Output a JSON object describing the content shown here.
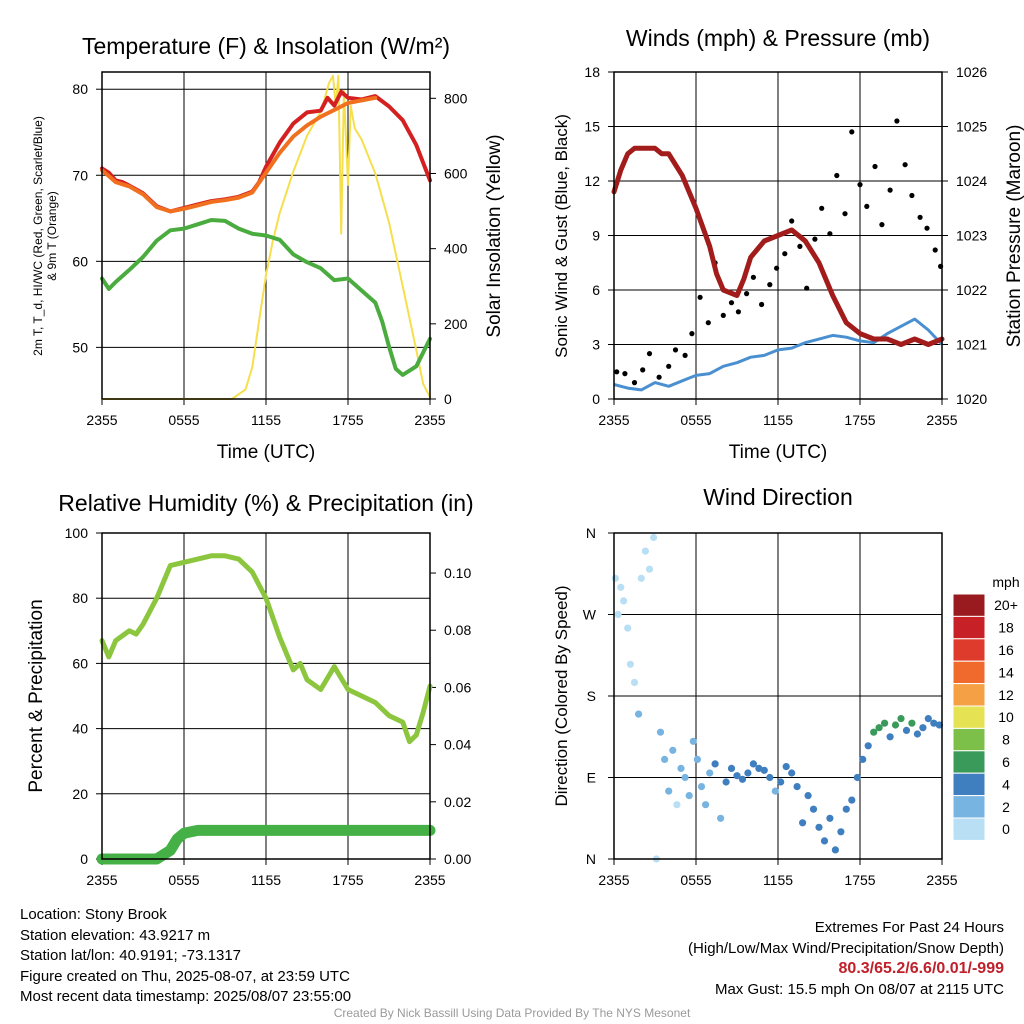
{
  "colors": {
    "t2m": "#d42020",
    "t9m": "#f07020",
    "dewpoint": "#4aab3f",
    "solar": "#f5df4d",
    "gust": "#000000",
    "wind": "#4a90d0",
    "pressure": "#a21c1c",
    "rh": "#8cc63e",
    "precip": "#44b045",
    "grid": "#000000"
  },
  "footer": {
    "location": "Location: Stony Brook",
    "elevation": "Station elevation: 43.9217 m",
    "latlon": "Station lat/lon: 40.9191; -73.1317",
    "created": "Figure created on Thu, 2025-08-07, at 23:59 UTC",
    "recent": "Most recent data timestamp: 2025/08/07 23:55:00",
    "extremes_title": "Extremes For Past 24 Hours",
    "extremes_legend": "(High/Low/Max Wind/Precipitation/Snow Depth)",
    "extremes_values": "80.3/65.2/6.6/0.01/-999",
    "max_gust": "Max Gust: 15.5 mph On 08/07 at 2115 UTC",
    "credit": "Created By Nick Bassill Using Data Provided By The NYS Mesonet"
  },
  "chart_data": [
    {
      "type": "line",
      "title": "Temperature (F) & Insolation (W/m²)",
      "xlabel": "Time (UTC)",
      "ylabel": "2m T, T_d, HI/WC (Red, Green, Scarlet/Blue) & 9m T (Orange)",
      "ylabel_right": "Solar Insolation (Yellow)",
      "x_ticks": [
        "2355",
        "0555",
        "1155",
        "1755",
        "2355"
      ],
      "x_hours": [
        0,
        24
      ],
      "ylim": [
        44,
        82
      ],
      "y_ticks": [
        50,
        60,
        70,
        80
      ],
      "ylim_right": [
        0,
        870
      ],
      "y_ticks_right": [
        0,
        200,
        400,
        600,
        800
      ],
      "grid": true,
      "series": [
        {
          "name": "2m T",
          "axis": "left",
          "color": "#d42020",
          "x": [
            0,
            0.5,
            1,
            1.5,
            2,
            3,
            4,
            5,
            6,
            7,
            8,
            9,
            10,
            11,
            11.5,
            12,
            13,
            14,
            15,
            16,
            16.5,
            17,
            17.5,
            18,
            19,
            20,
            21,
            22,
            23,
            24
          ],
          "y": [
            70.8,
            70.3,
            69.4,
            69.2,
            68.8,
            67.9,
            66.4,
            65.8,
            66.2,
            66.6,
            67.0,
            67.2,
            67.5,
            68.1,
            69.2,
            71.0,
            73.8,
            76.0,
            77.3,
            77.5,
            79.0,
            78.1,
            79.7,
            79.0,
            78.8,
            79.2,
            78.0,
            76.4,
            73.5,
            69.4
          ]
        },
        {
          "name": "9m T",
          "axis": "left",
          "color": "#f07020",
          "x": [
            0,
            1,
            2,
            3,
            4,
            5,
            6,
            7,
            8,
            9,
            10,
            11,
            12,
            13,
            14,
            15,
            16,
            17,
            18,
            19,
            20
          ],
          "y": [
            70.6,
            69.2,
            68.7,
            67.8,
            66.3,
            65.8,
            66.1,
            66.5,
            66.9,
            67.1,
            67.4,
            68.0,
            70.3,
            72.6,
            74.5,
            75.8,
            76.8,
            77.6,
            78.4,
            78.7,
            79.0
          ]
        },
        {
          "name": "Td",
          "axis": "left",
          "color": "#4aab3f",
          "x": [
            0,
            0.5,
            1,
            2,
            3,
            4,
            5,
            6,
            7,
            8,
            9,
            10,
            11,
            12,
            13,
            14,
            15,
            16,
            17,
            18,
            19,
            20,
            20.5,
            21,
            21.5,
            22,
            23,
            24
          ],
          "y": [
            58.0,
            56.8,
            57.6,
            59.0,
            60.5,
            62.4,
            63.6,
            63.8,
            64.3,
            64.8,
            64.7,
            63.8,
            63.2,
            63.0,
            62.5,
            60.8,
            59.9,
            59.2,
            57.8,
            58.0,
            56.6,
            55.2,
            53.0,
            50.1,
            47.5,
            46.8,
            47.8,
            51.0
          ]
        },
        {
          "name": "Solar",
          "axis": "right",
          "color": "#f5df4d",
          "x": [
            0,
            9.5,
            10.5,
            11,
            11.5,
            12,
            12.5,
            13,
            14,
            15,
            16,
            16.3,
            16.6,
            16.9,
            17.1,
            17.3,
            17.5,
            17.7,
            18.0,
            18.2,
            18.5,
            19,
            20,
            21,
            22,
            23,
            23.5,
            24
          ],
          "y": [
            0,
            0,
            25,
            85,
            210,
            330,
            420,
            495,
            605,
            700,
            765,
            800,
            840,
            860,
            780,
            860,
            440,
            820,
            570,
            780,
            720,
            690,
            600,
            470,
            300,
            130,
            40,
            5
          ]
        }
      ]
    },
    {
      "type": "scatter",
      "title": "Winds (mph) & Pressure (mb)",
      "xlabel": "Time (UTC)",
      "ylabel": "Sonic Wind & Gust (Blue, Black)",
      "ylabel_right": "Station Pressure (Maroon)",
      "x_ticks": [
        "2355",
        "0555",
        "1155",
        "1755",
        "2355"
      ],
      "x_hours": [
        0,
        24
      ],
      "ylim": [
        0,
        18
      ],
      "y_ticks": [
        0,
        3,
        6,
        9,
        12,
        15,
        18
      ],
      "ylim_right": [
        1020,
        1026
      ],
      "y_ticks_right": [
        1020,
        1021,
        1022,
        1023,
        1024,
        1025,
        1026
      ],
      "grid": true,
      "series": [
        {
          "name": "Sonic Wind",
          "axis": "left",
          "color": "#4a90d0",
          "x": [
            0,
            1,
            2,
            3,
            4,
            5,
            6,
            7,
            8,
            9,
            10,
            11,
            12,
            13,
            14,
            15,
            16,
            17,
            18,
            19,
            20,
            21,
            22,
            23,
            24
          ],
          "y": [
            0.8,
            0.6,
            0.5,
            0.9,
            0.7,
            1.0,
            1.3,
            1.4,
            1.8,
            2.0,
            2.3,
            2.4,
            2.7,
            2.8,
            3.1,
            3.3,
            3.5,
            3.4,
            3.2,
            3.1,
            3.6,
            4.0,
            4.4,
            3.8,
            3.0
          ]
        },
        {
          "name": "Gust",
          "axis": "left",
          "color": "#000000",
          "x": [
            0.2,
            0.8,
            1.5,
            2.1,
            2.6,
            3.3,
            4.0,
            4.5,
            5.2,
            5.7,
            6.3,
            6.9,
            7.4,
            8.0,
            8.6,
            9.1,
            9.7,
            10.2,
            10.8,
            11.4,
            11.9,
            12.5,
            13.0,
            13.6,
            14.1,
            14.7,
            15.2,
            15.8,
            16.3,
            16.9,
            17.4,
            18.0,
            18.5,
            19.1,
            19.6,
            20.2,
            20.7,
            21.3,
            21.8,
            22.4,
            22.9,
            23.5,
            23.9
          ],
          "y": [
            1.5,
            1.4,
            0.9,
            1.6,
            2.5,
            1.2,
            1.8,
            2.7,
            2.4,
            3.6,
            5.6,
            4.2,
            7.5,
            4.6,
            5.3,
            4.8,
            5.8,
            6.7,
            5.2,
            6.3,
            7.2,
            8.0,
            9.8,
            8.4,
            6.1,
            8.8,
            10.5,
            9.1,
            12.3,
            10.2,
            14.7,
            11.8,
            10.6,
            12.8,
            9.6,
            11.5,
            15.3,
            12.9,
            11.2,
            10.0,
            9.4,
            8.2,
            7.3
          ]
        },
        {
          "name": "Pressure",
          "axis": "right",
          "color": "#a21c1c",
          "x": [
            0,
            0.5,
            1,
            1.5,
            2,
            3,
            3.5,
            4,
            5,
            6,
            7,
            7.5,
            8,
            9,
            9.5,
            10,
            11,
            12,
            13,
            14,
            15,
            16,
            17,
            18,
            19,
            20,
            21,
            22,
            23,
            24
          ],
          "y": [
            1023.8,
            1024.2,
            1024.5,
            1024.6,
            1024.6,
            1024.6,
            1024.5,
            1024.5,
            1024.1,
            1023.5,
            1022.8,
            1022.3,
            1022.0,
            1021.9,
            1022.2,
            1022.6,
            1022.9,
            1023.0,
            1023.1,
            1022.9,
            1022.5,
            1021.9,
            1021.4,
            1021.2,
            1021.1,
            1021.1,
            1021.0,
            1021.1,
            1021.0,
            1021.1
          ]
        }
      ]
    },
    {
      "type": "line",
      "title": "Relative Humidity (%) & Precipitation (in)",
      "xlabel": "",
      "ylabel": "Percent & Precipitation",
      "x_ticks": [
        "2355",
        "0555",
        "1155",
        "1755",
        "2355"
      ],
      "x_hours": [
        0,
        24
      ],
      "ylim": [
        0,
        100
      ],
      "y_ticks": [
        0,
        20,
        40,
        60,
        80,
        100
      ],
      "ylim_right": [
        0,
        0.114
      ],
      "y_ticks_right": [
        "0.00",
        "0.02",
        "0.04",
        "0.06",
        "0.08",
        "0.10"
      ],
      "grid": true,
      "series": [
        {
          "name": "RH",
          "axis": "left",
          "color": "#8cc63e",
          "x": [
            0,
            0.5,
            1,
            2,
            2.5,
            3,
            4,
            5,
            6,
            7,
            8,
            9,
            10,
            11,
            12,
            13,
            14,
            14.5,
            15,
            16,
            17,
            18,
            19,
            20,
            21,
            22,
            22.5,
            23,
            23.5,
            24
          ],
          "y": [
            67,
            62,
            67,
            70,
            69,
            72,
            80,
            90,
            91,
            92,
            93,
            93,
            92,
            88,
            80,
            68,
            58,
            60,
            55,
            52,
            59,
            52,
            50,
            48,
            44,
            42,
            36,
            38,
            45,
            53
          ]
        },
        {
          "name": "Precipitation",
          "axis": "right",
          "color": "#44b045",
          "x": [
            0,
            1,
            2,
            3,
            4,
            5,
            5.5,
            6,
            7,
            8,
            12,
            16,
            20,
            24
          ],
          "y": [
            0,
            0,
            0,
            0,
            0,
            0.003,
            0.007,
            0.009,
            0.01,
            0.01,
            0.01,
            0.01,
            0.01,
            0.01
          ]
        }
      ]
    },
    {
      "type": "scatter",
      "title": "Wind Direction",
      "xlabel": "",
      "ylabel": "Direction (Colored By Speed)",
      "x_ticks": [
        "2355",
        "0555",
        "1155",
        "1755",
        "2355"
      ],
      "x_hours": [
        0,
        24
      ],
      "y_ticks": [
        "N",
        "E",
        "S",
        "W",
        "N"
      ],
      "ylim_degrees": [
        0,
        360
      ],
      "legend_title": "mph",
      "legend_labels": [
        "20+",
        "18",
        "16",
        "14",
        "12",
        "10",
        "8",
        "6",
        "4",
        "2",
        "0"
      ],
      "legend_colors": [
        "#9a1b1f",
        "#c82027",
        "#de3b2c",
        "#ef6a2c",
        "#f6a045",
        "#e5e254",
        "#7cc04a",
        "#3a9a5a",
        "#3f7fbf",
        "#78b4e2",
        "#b9dff5"
      ],
      "legend_placement": "right",
      "grid": true,
      "series": [
        {
          "name": "Direction",
          "x": [
            0.1,
            0.3,
            0.5,
            0.7,
            1.0,
            1.2,
            1.5,
            1.8,
            2.0,
            2.3,
            2.6,
            2.9,
            3.1,
            3.4,
            3.7,
            4.0,
            4.3,
            4.6,
            4.9,
            5.2,
            5.5,
            5.8,
            6.1,
            6.4,
            6.7,
            7.0,
            7.4,
            7.8,
            8.2,
            8.6,
            9.0,
            9.4,
            9.8,
            10.2,
            10.6,
            11.0,
            11.4,
            11.8,
            12.2,
            12.6,
            13.0,
            13.4,
            13.8,
            14.2,
            14.6,
            15.0,
            15.4,
            15.8,
            16.2,
            16.6,
            17.0,
            17.4,
            17.8,
            18.2,
            18.6,
            19.0,
            19.4,
            19.8,
            20.2,
            20.6,
            21.0,
            21.4,
            21.8,
            22.2,
            22.6,
            23.0,
            23.4,
            23.8
          ],
          "y": [
            310,
            270,
            300,
            285,
            255,
            215,
            195,
            160,
            310,
            340,
            320,
            355,
            0,
            140,
            110,
            75,
            120,
            60,
            100,
            90,
            70,
            130,
            110,
            80,
            60,
            95,
            105,
            45,
            85,
            100,
            92,
            88,
            95,
            105,
            100,
            98,
            90,
            75,
            85,
            102,
            95,
            80,
            40,
            70,
            55,
            35,
            20,
            45,
            10,
            30,
            55,
            65,
            90,
            110,
            125,
            140,
            145,
            150,
            135,
            148,
            155,
            142,
            150,
            138,
            145,
            155,
            150,
            148
          ],
          "speed": [
            0.5,
            0.6,
            0.7,
            0.5,
            0.8,
            0.7,
            0.9,
            1.0,
            0.8,
            0.9,
            0.6,
            0.7,
            0.5,
            1.2,
            1.5,
            1.0,
            1.6,
            0.9,
            1.8,
            2.0,
            1.3,
            2.6,
            2.4,
            1.4,
            2.0,
            2.8,
            3.1,
            1.8,
            3.2,
            3.0,
            3.4,
            3.3,
            3.6,
            3.5,
            3.8,
            3.6,
            3.2,
            2.8,
            3.3,
            3.7,
            3.9,
            3.5,
            3.2,
            3.4,
            3.6,
            3.8,
            3.9,
            3.5,
            4.0,
            3.7,
            3.2,
            3.3,
            3.5,
            4.5,
            4.8,
            5.5,
            6.2,
            6.5,
            4.5,
            6.0,
            5.0,
            4.6,
            6.3,
            4.2,
            4.4,
            3.8,
            3.9,
            3.6
          ]
        }
      ]
    }
  ]
}
